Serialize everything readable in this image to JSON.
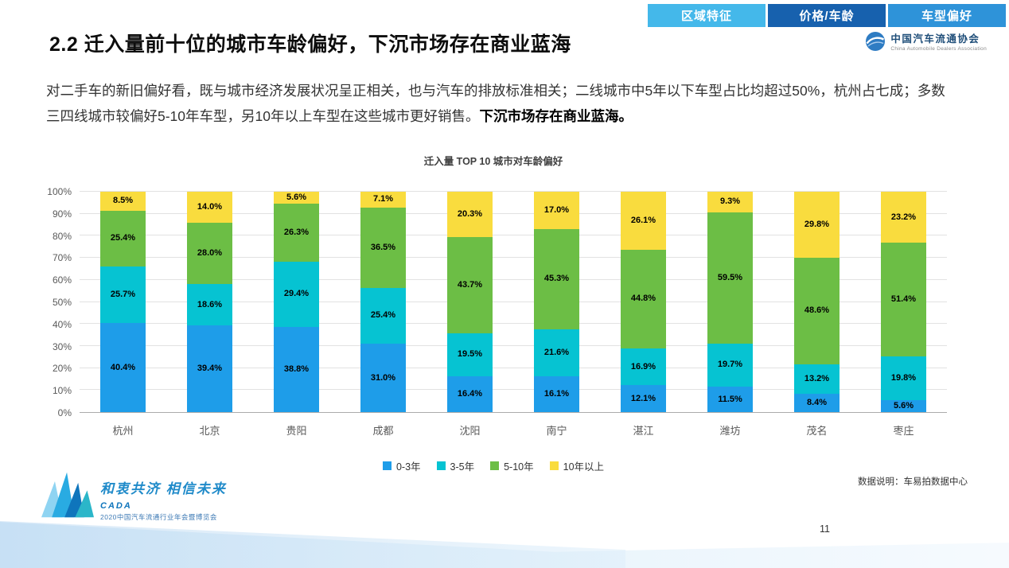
{
  "tabs": [
    {
      "label": "区域特征",
      "color": "#44B8EA",
      "active": false
    },
    {
      "label": "价格/车龄",
      "color": "#1761AE",
      "active": true
    },
    {
      "label": "车型偏好",
      "color": "#2E93D9",
      "active": false
    }
  ],
  "logo": {
    "org_cn": "中国汽车流通协会",
    "org_en": "China Automobile Dealers Association"
  },
  "header": {
    "title": "2.2 迁入量前十位的城市车龄偏好，下沉市场存在商业蓝海"
  },
  "paragraph": {
    "text": "对二手车的新旧偏好看，既与城市经济发展状况呈正相关，也与汽车的排放标准相关；二线城市中5年以下车型占比均超过50%，杭州占七成；多数三四线城市较偏好5-10年车型，另10年以上车型在这些城市更好销售。",
    "bold": "下沉市场存在商业蓝海。"
  },
  "chart_data": {
    "type": "bar",
    "stacked": true,
    "title": "迁入量 TOP 10 城市对车龄偏好",
    "categories": [
      "杭州",
      "北京",
      "贵阳",
      "成都",
      "沈阳",
      "南宁",
      "湛江",
      "潍坊",
      "茂名",
      "枣庄"
    ],
    "series": [
      {
        "name": "0-3年",
        "color": "#1E9DE9",
        "values": [
          40.4,
          39.4,
          38.8,
          31.0,
          16.4,
          16.1,
          12.1,
          11.5,
          8.4,
          5.6
        ]
      },
      {
        "name": "3-5年",
        "color": "#06C3D2",
        "values": [
          25.7,
          18.6,
          29.4,
          25.4,
          19.5,
          21.6,
          16.9,
          19.7,
          13.2,
          19.8
        ]
      },
      {
        "name": "5-10年",
        "color": "#6CBE45",
        "values": [
          25.4,
          28.0,
          26.3,
          36.5,
          43.7,
          45.3,
          44.8,
          59.5,
          48.6,
          51.4
        ]
      },
      {
        "name": "10年以上",
        "color": "#F9DC3E",
        "values": [
          8.5,
          14.0,
          5.6,
          7.1,
          20.3,
          17.0,
          26.1,
          9.3,
          29.8,
          23.2
        ]
      }
    ],
    "y_ticks": [
      "0%",
      "10%",
      "20%",
      "30%",
      "40%",
      "50%",
      "60%",
      "70%",
      "80%",
      "90%",
      "100%"
    ],
    "ylim": [
      0,
      100
    ],
    "xlabel": "",
    "ylabel": "",
    "grid": true,
    "legend_position": "bottom"
  },
  "footer": {
    "data_note": "数据说明：车易拍数据中心",
    "page_number": "11",
    "slogan": "和衷共济 相信未来",
    "brand": "CADA",
    "event": "2020中国汽车流通行业年会暨博览会"
  }
}
